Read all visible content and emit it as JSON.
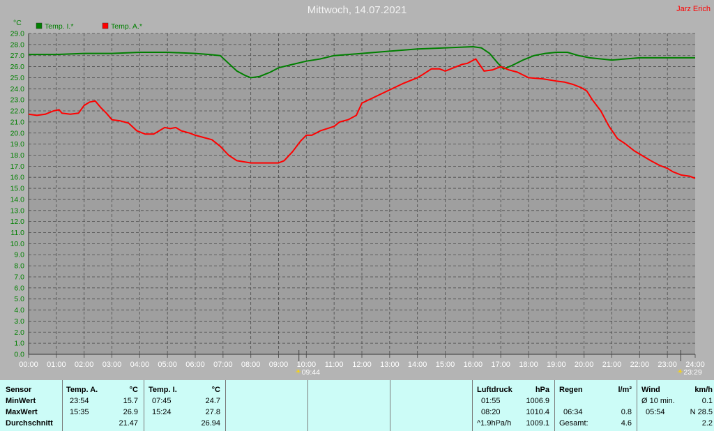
{
  "title": "Mittwoch, 14.07.2021",
  "author": "Jarz Erich",
  "colors": {
    "background": "#b4b4b4",
    "plot": "#9f9f9f",
    "axis_text": "#008000",
    "series_inside": "#008000",
    "series_outside": "#ff0000",
    "table_bg": "#ccfcf7"
  },
  "chart_data": {
    "type": "line",
    "yunit": "°C",
    "ylim": [
      0,
      29
    ],
    "ystep": 1,
    "xlim": [
      0,
      24
    ],
    "grid": true,
    "legend_position": "top-left",
    "x_ticks": [
      "00:00",
      "01:00",
      "02:00",
      "03:00",
      "04:00",
      "05:00",
      "06:00",
      "07:00",
      "08:00",
      "09:00",
      "10:00",
      "11:00",
      "12:00",
      "13:00",
      "14:00",
      "15:00",
      "16:00",
      "17:00",
      "18:00",
      "19:00",
      "20:00",
      "21:00",
      "22:00",
      "23:00",
      "24:00"
    ],
    "sunrise": "09:44",
    "sunset": "23:29",
    "series": [
      {
        "name": "Temp. I.*",
        "color": "#008000",
        "x": [
          0,
          1,
          2,
          3,
          4,
          5,
          6,
          6.5,
          6.9,
          7.2,
          7.5,
          7.8,
          8,
          8.3,
          8.7,
          9,
          9.5,
          10,
          10.5,
          11,
          12,
          13,
          14,
          15,
          16,
          16.3,
          16.6,
          16.9,
          17.1,
          17.4,
          17.8,
          18.2,
          18.6,
          19,
          19.4,
          19.8,
          20.2,
          20.6,
          21,
          21.5,
          22,
          22.5,
          23,
          24
        ],
        "y": [
          27.1,
          27.1,
          27.2,
          27.2,
          27.3,
          27.3,
          27.2,
          27.1,
          27.0,
          26.3,
          25.6,
          25.2,
          25.0,
          25.1,
          25.5,
          25.9,
          26.2,
          26.5,
          26.7,
          27.0,
          27.2,
          27.4,
          27.6,
          27.7,
          27.8,
          27.7,
          27.2,
          26.3,
          25.8,
          26.1,
          26.6,
          27.0,
          27.2,
          27.3,
          27.3,
          27.0,
          26.8,
          26.7,
          26.6,
          26.7,
          26.8,
          26.8,
          26.8,
          26.8
        ]
      },
      {
        "name": "Temp. A.*",
        "color": "#ff0000",
        "x": [
          0,
          0.3,
          0.6,
          0.9,
          1.1,
          1.2,
          1.5,
          1.8,
          2.0,
          2.2,
          2.4,
          2.6,
          2.8,
          3.0,
          3.3,
          3.6,
          3.9,
          4.2,
          4.5,
          4.7,
          4.9,
          5.1,
          5.3,
          5.5,
          5.8,
          6.0,
          6.3,
          6.6,
          6.9,
          7.2,
          7.5,
          8,
          8.5,
          9.0,
          9.2,
          9.5,
          9.8,
          10.0,
          10.2,
          10.5,
          11.0,
          11.2,
          11.5,
          11.8,
          12.0,
          12.5,
          13.0,
          13.5,
          14.0,
          14.2,
          14.5,
          14.8,
          15.0,
          15.3,
          15.6,
          15.8,
          16.1,
          16.4,
          16.7,
          17.0,
          17.3,
          17.6,
          18.0,
          18.5,
          19.0,
          19.3,
          19.6,
          19.9,
          20.1,
          20.3,
          20.6,
          20.9,
          21.2,
          21.5,
          21.8,
          22.0,
          22.4,
          22.7,
          23.0,
          23.2,
          23.5,
          23.8,
          24.0
        ],
        "y": [
          21.7,
          21.6,
          21.7,
          22.0,
          22.1,
          21.8,
          21.7,
          21.8,
          22.5,
          22.8,
          22.9,
          22.3,
          21.8,
          21.2,
          21.1,
          20.9,
          20.2,
          19.9,
          19.9,
          20.2,
          20.5,
          20.4,
          20.5,
          20.2,
          20.0,
          19.8,
          19.6,
          19.4,
          18.8,
          18.0,
          17.5,
          17.3,
          17.3,
          17.3,
          17.5,
          18.3,
          19.3,
          19.8,
          19.8,
          20.2,
          20.6,
          21.0,
          21.2,
          21.6,
          22.7,
          23.3,
          23.9,
          24.5,
          25.0,
          25.3,
          25.8,
          25.8,
          25.6,
          25.9,
          26.2,
          26.3,
          26.7,
          25.6,
          25.7,
          26.0,
          25.7,
          25.5,
          25.0,
          24.9,
          24.7,
          24.6,
          24.4,
          24.1,
          23.8,
          23.0,
          22.0,
          20.6,
          19.5,
          19.0,
          18.4,
          18.1,
          17.5,
          17.1,
          16.8,
          16.5,
          16.2,
          16.1,
          15.9
        ]
      }
    ]
  },
  "stats": {
    "temp_a": {
      "header": "Temp. A.",
      "unit": "°C",
      "min_time": "23:54",
      "min": "15.7",
      "max_time": "15:35",
      "max": "26.9",
      "avg": "21.47"
    },
    "temp_i": {
      "header": "Temp. I.",
      "unit": "°C",
      "min_time": "07:45",
      "min": "24.7",
      "max_time": "15:24",
      "max": "27.8",
      "avg": "26.94"
    },
    "rows": {
      "sensor": "Sensor",
      "min": "MinWert",
      "max": "MaxWert",
      "avg": "Durchschnitt"
    },
    "pressure": {
      "header": "Luftdruck",
      "unit": "hPa",
      "min_time": "01:55",
      "min": "1006.9",
      "max_time": "08:20",
      "max": "1010.4",
      "trend_label": "^1.9hPa/h",
      "trend_value": "1009.1"
    },
    "rain": {
      "header": "Regen",
      "unit": "l/m²",
      "time": "06:34",
      "value": "0.8",
      "total_label": "Gesamt:",
      "total": "4.6"
    },
    "wind": {
      "header": "Wind",
      "unit": "km/h",
      "avg_label": "Ø 10 min.",
      "avg": "0.1",
      "gust_time": "05:54",
      "gust": "N 28.5",
      "last": "2.2"
    }
  }
}
